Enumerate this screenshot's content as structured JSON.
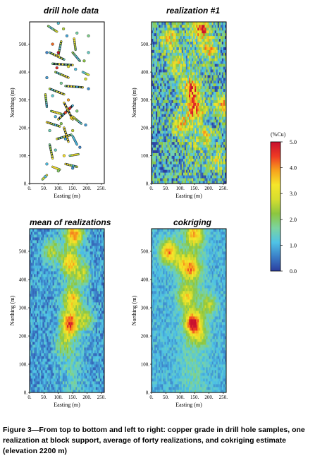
{
  "figure": {
    "caption": "Figure 3—From top to bottom and left to right: copper grade in drill hole samples, one realization at block support, average of forty realizations, and cokriging estimate (elevation 2200 m)"
  },
  "colorbar": {
    "title": "(%Cu)",
    "ticks": [
      "5.0",
      "4.0",
      "3.0",
      "2.0",
      "1.0",
      "0.0"
    ],
    "range": [
      0,
      5
    ],
    "colors": [
      "#2b3d9e",
      "#3b7fc8",
      "#4fc3e6",
      "#7bd4a0",
      "#8cc63f",
      "#d6de2f",
      "#f5e62a",
      "#f7a21c",
      "#ee3a24",
      "#c8102e"
    ]
  },
  "chart_data": [
    {
      "type": "scatter",
      "title": "drill hole data",
      "xlabel": "Easting (m)",
      "ylabel": "Northing (m)",
      "xlim": [
        0,
        260
      ],
      "ylim": [
        0,
        580
      ],
      "xticks": [
        "0.",
        "50.",
        "100.",
        "150.",
        "200.",
        "250."
      ],
      "yticks": [
        "0.",
        "100.",
        "200.",
        "300.",
        "400.",
        "500."
      ],
      "holes": [
        {
          "x1": 65,
          "y1": 565,
          "x2": 95,
          "y2": 545
        },
        {
          "x1": 70,
          "y1": 470,
          "x2": 120,
          "y2": 445
        },
        {
          "x1": 80,
          "y1": 430,
          "x2": 150,
          "y2": 425
        },
        {
          "x1": 90,
          "y1": 400,
          "x2": 135,
          "y2": 380
        },
        {
          "x1": 110,
          "y1": 510,
          "x2": 100,
          "y2": 460
        },
        {
          "x1": 150,
          "y1": 470,
          "x2": 175,
          "y2": 440
        },
        {
          "x1": 155,
          "y1": 520,
          "x2": 160,
          "y2": 480
        },
        {
          "x1": 125,
          "y1": 350,
          "x2": 185,
          "y2": 345
        },
        {
          "x1": 70,
          "y1": 340,
          "x2": 120,
          "y2": 320
        },
        {
          "x1": 120,
          "y1": 290,
          "x2": 150,
          "y2": 230
        },
        {
          "x1": 150,
          "y1": 280,
          "x2": 100,
          "y2": 230
        },
        {
          "x1": 75,
          "y1": 260,
          "x2": 110,
          "y2": 250
        },
        {
          "x1": 60,
          "y1": 220,
          "x2": 105,
          "y2": 205
        },
        {
          "x1": 150,
          "y1": 240,
          "x2": 180,
          "y2": 215
        },
        {
          "x1": 95,
          "y1": 160,
          "x2": 145,
          "y2": 175
        },
        {
          "x1": 70,
          "y1": 140,
          "x2": 80,
          "y2": 90
        },
        {
          "x1": 120,
          "y1": 200,
          "x2": 135,
          "y2": 150
        },
        {
          "x1": 150,
          "y1": 170,
          "x2": 165,
          "y2": 140
        },
        {
          "x1": 80,
          "y1": 60,
          "x2": 105,
          "y2": 50
        },
        {
          "x1": 125,
          "y1": 70,
          "x2": 165,
          "y2": 60
        },
        {
          "x1": 140,
          "y1": 100,
          "x2": 170,
          "y2": 105
        },
        {
          "x1": 45,
          "y1": 15,
          "x2": 60,
          "y2": 30
        },
        {
          "x1": 185,
          "y1": 400,
          "x2": 205,
          "y2": 390
        },
        {
          "x1": 55,
          "y1": 320,
          "x2": 60,
          "y2": 275
        }
      ],
      "points": [
        {
          "x": 100,
          "y": 575,
          "v": 1.2
        },
        {
          "x": 118,
          "y": 555,
          "v": 2.5
        },
        {
          "x": 130,
          "y": 530,
          "v": 0.9
        },
        {
          "x": 165,
          "y": 540,
          "v": 1.6
        },
        {
          "x": 205,
          "y": 530,
          "v": 1.8
        },
        {
          "x": 80,
          "y": 500,
          "v": 4.2
        },
        {
          "x": 205,
          "y": 470,
          "v": 1.4
        },
        {
          "x": 60,
          "y": 470,
          "v": 0.6
        },
        {
          "x": 190,
          "y": 440,
          "v": 2.2
        },
        {
          "x": 95,
          "y": 415,
          "v": 4.6
        },
        {
          "x": 160,
          "y": 410,
          "v": 1.1
        },
        {
          "x": 60,
          "y": 380,
          "v": 0.8
        },
        {
          "x": 195,
          "y": 375,
          "v": 2.8
        },
        {
          "x": 110,
          "y": 360,
          "v": 1.7
        },
        {
          "x": 205,
          "y": 340,
          "v": 0.7
        },
        {
          "x": 80,
          "y": 315,
          "v": 1.3
        },
        {
          "x": 135,
          "y": 300,
          "v": 3.9
        },
        {
          "x": 140,
          "y": 270,
          "v": 4.8
        },
        {
          "x": 125,
          "y": 255,
          "v": 4.4
        },
        {
          "x": 165,
          "y": 260,
          "v": 1.9
        },
        {
          "x": 90,
          "y": 240,
          "v": 1.0
        },
        {
          "x": 110,
          "y": 215,
          "v": 2.1
        },
        {
          "x": 195,
          "y": 210,
          "v": 0.8
        },
        {
          "x": 70,
          "y": 190,
          "v": 1.5
        },
        {
          "x": 150,
          "y": 190,
          "v": 2.7
        },
        {
          "x": 125,
          "y": 160,
          "v": 0.9
        },
        {
          "x": 90,
          "y": 120,
          "v": 1.4
        },
        {
          "x": 175,
          "y": 130,
          "v": 0.6
        },
        {
          "x": 120,
          "y": 100,
          "v": 3.4
        },
        {
          "x": 60,
          "y": 70,
          "v": 1.1
        },
        {
          "x": 150,
          "y": 55,
          "v": 0.7
        },
        {
          "x": 100,
          "y": 45,
          "v": 2.0
        },
        {
          "x": 55,
          "y": 25,
          "v": 1.2
        },
        {
          "x": 135,
          "y": 420,
          "v": 3.1
        },
        {
          "x": 100,
          "y": 470,
          "v": 4.9
        },
        {
          "x": 145,
          "y": 235,
          "v": 3.6
        }
      ]
    },
    {
      "type": "heatmap",
      "title": "realization #1",
      "xlabel": "Easting (m)",
      "ylabel": "Northing (m)",
      "xlim": [
        0,
        260
      ],
      "ylim": [
        0,
        580
      ],
      "xticks": [
        "0.",
        "50.",
        "100.",
        "150.",
        "200.",
        "250."
      ],
      "yticks": [
        "0.",
        "100.",
        "200.",
        "300.",
        "400.",
        "500."
      ],
      "hotspots": [
        {
          "x": 175,
          "y": 560,
          "a": 3.0
        },
        {
          "x": 140,
          "y": 340,
          "a": 3.0
        },
        {
          "x": 155,
          "y": 265,
          "a": 2.6
        },
        {
          "x": 60,
          "y": 520,
          "a": 2.2
        },
        {
          "x": 200,
          "y": 480,
          "a": 2.0
        },
        {
          "x": 250,
          "y": 280,
          "a": 2.2
        },
        {
          "x": 105,
          "y": 210,
          "a": 2.0
        },
        {
          "x": 190,
          "y": 165,
          "a": 1.8
        },
        {
          "x": 85,
          "y": 430,
          "a": 1.8
        },
        {
          "x": 230,
          "y": 80,
          "a": 1.4
        }
      ],
      "baseline": 1.1,
      "noise": 1.3,
      "seed": 3
    },
    {
      "type": "heatmap",
      "title": "mean of realizations",
      "xlabel": "Easting (m)",
      "ylabel": "Northing (m)",
      "xlim": [
        0,
        260
      ],
      "ylim": [
        0,
        580
      ],
      "xticks": [
        "0.",
        "50.",
        "100.",
        "150.",
        "200.",
        "250."
      ],
      "yticks": [
        "0.",
        "100.",
        "200.",
        "300.",
        "400.",
        "500."
      ],
      "hotspots": [
        {
          "x": 140,
          "y": 245,
          "a": 3.4
        },
        {
          "x": 155,
          "y": 560,
          "a": 2.8
        },
        {
          "x": 140,
          "y": 460,
          "a": 2.4
        },
        {
          "x": 150,
          "y": 330,
          "a": 2.2
        },
        {
          "x": 75,
          "y": 500,
          "a": 1.6
        },
        {
          "x": 195,
          "y": 260,
          "a": 1.5
        },
        {
          "x": 120,
          "y": 170,
          "a": 1.2
        },
        {
          "x": 185,
          "y": 420,
          "a": 1.4
        }
      ],
      "baseline": 0.8,
      "noise": 0.55,
      "seed": 11
    },
    {
      "type": "heatmap",
      "title": "cokriging",
      "xlabel": "Easting (m)",
      "ylabel": "Northing (m)",
      "xlim": [
        0,
        260
      ],
      "ylim": [
        0,
        580
      ],
      "xticks": [
        "0.",
        "50.",
        "100.",
        "150.",
        "200.",
        "250."
      ],
      "yticks": [
        "0.",
        "100.",
        "200.",
        "300.",
        "400.",
        "500."
      ],
      "hotspots": [
        {
          "x": 145,
          "y": 245,
          "a": 3.6
        },
        {
          "x": 60,
          "y": 500,
          "a": 3.0
        },
        {
          "x": 140,
          "y": 440,
          "a": 2.4
        },
        {
          "x": 150,
          "y": 560,
          "a": 2.4
        },
        {
          "x": 120,
          "y": 340,
          "a": 2.0
        },
        {
          "x": 200,
          "y": 310,
          "a": 1.4
        },
        {
          "x": 105,
          "y": 460,
          "a": 1.6
        },
        {
          "x": 170,
          "y": 200,
          "a": 1.2
        }
      ],
      "baseline": 1.0,
      "noise": 0.4,
      "seed": 21
    }
  ]
}
